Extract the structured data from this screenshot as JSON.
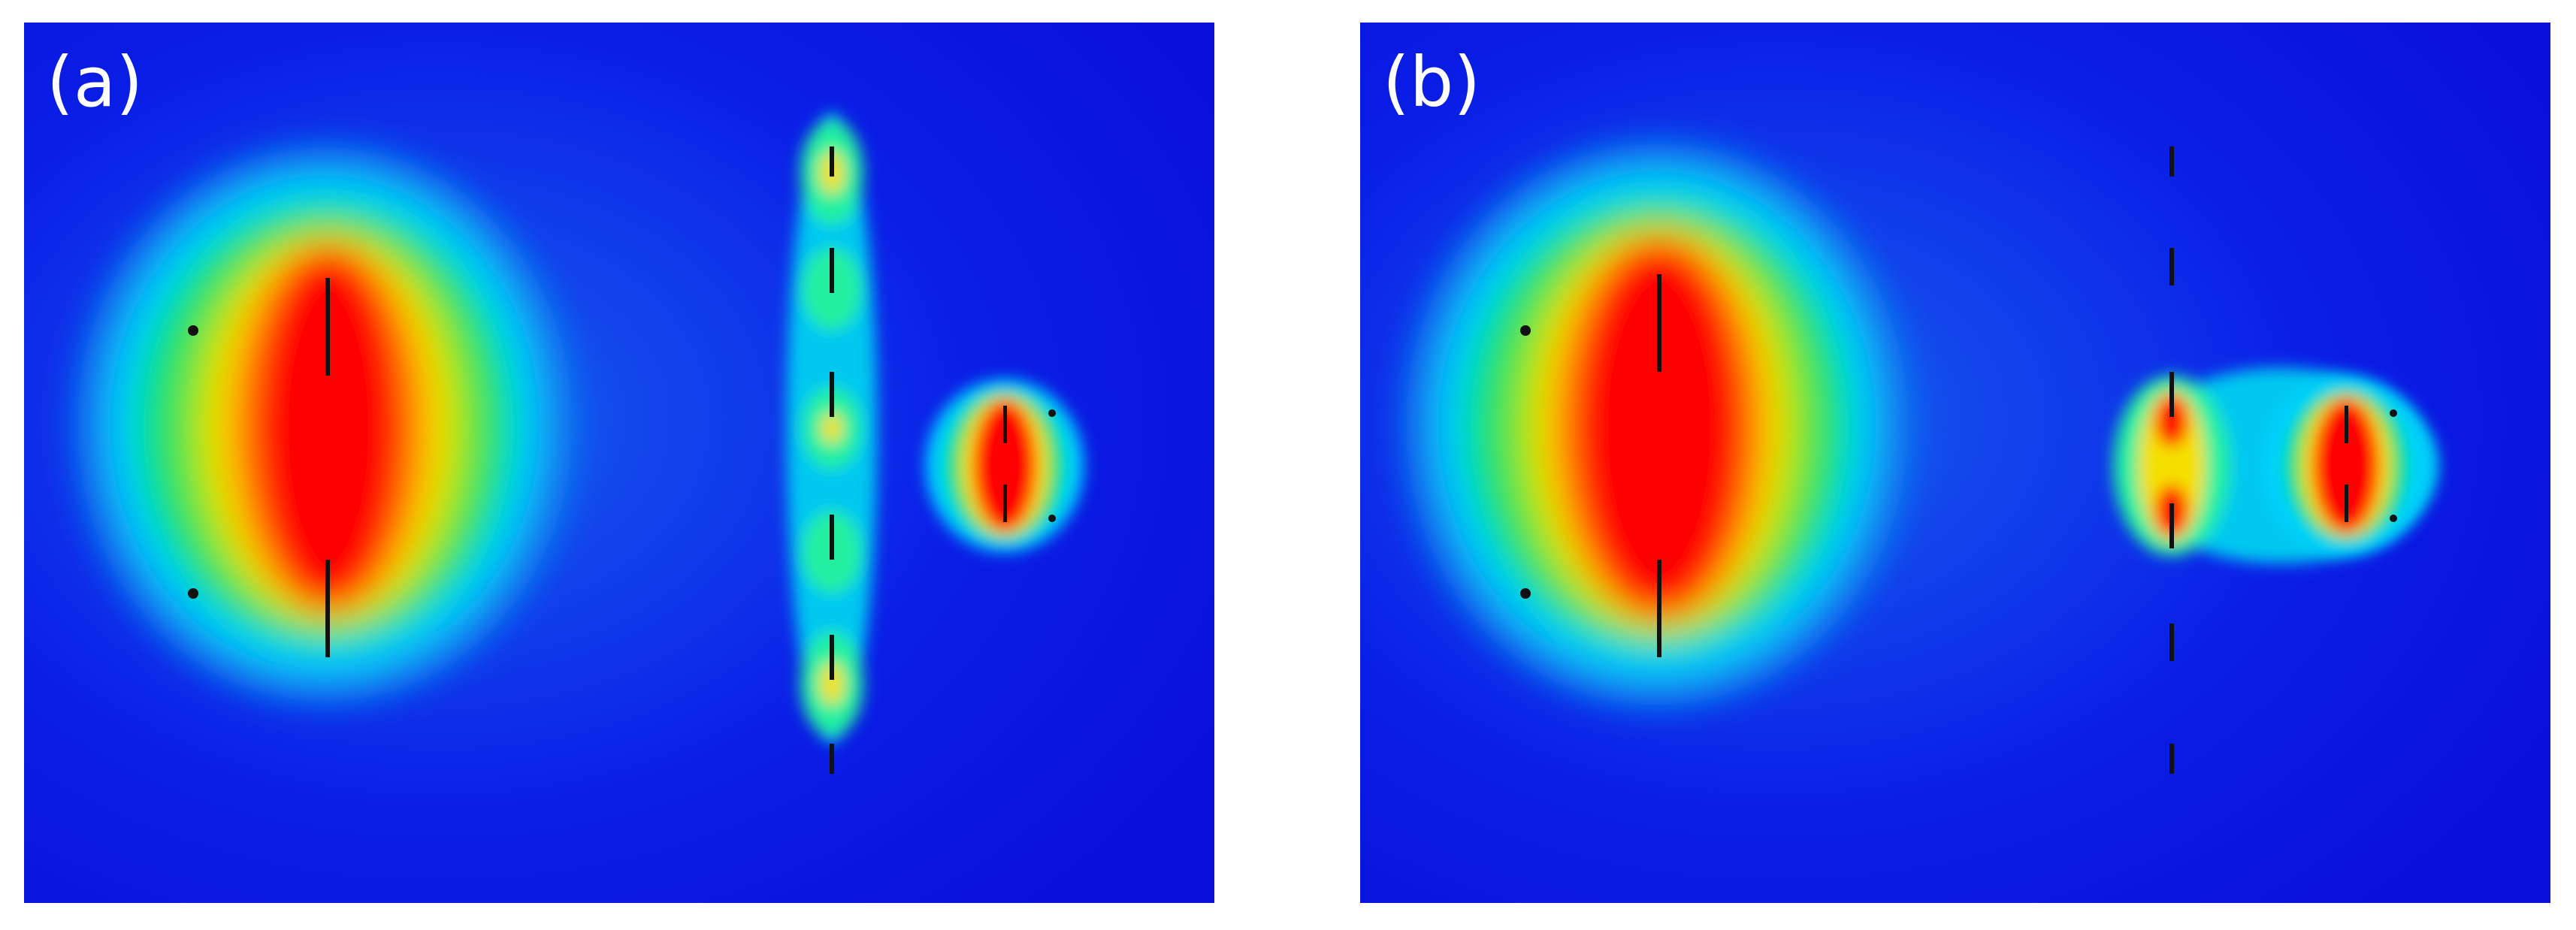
{
  "figure": {
    "panels": [
      {
        "label": "(a)"
      },
      {
        "label": "(b)"
      }
    ]
  },
  "colormap": {
    "low": "#0a14e6",
    "low_mid": "#00c8ff",
    "mid": "#00e400",
    "high_mid": "#f5e000",
    "high": "#ff0000"
  }
}
